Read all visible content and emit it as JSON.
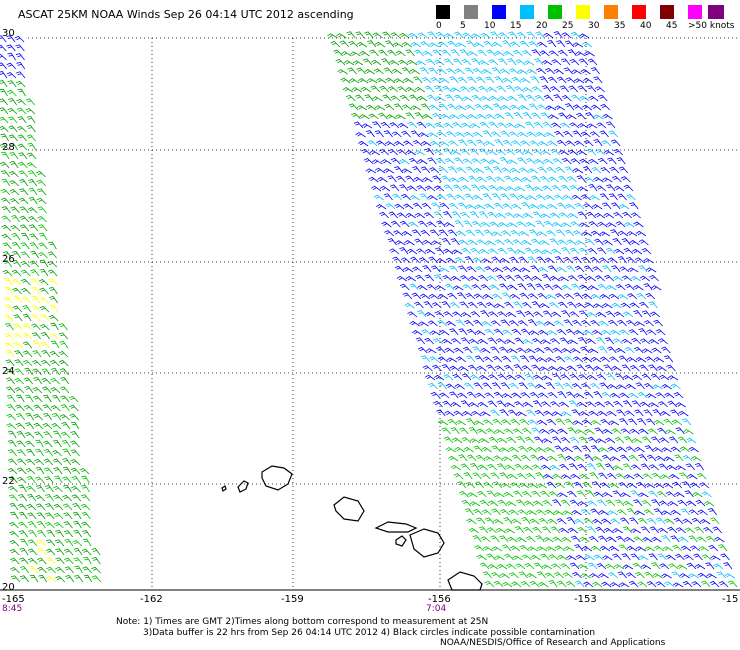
{
  "title": "ASCAT 25KM NOAA Winds Sep 26 04:14 UTC 2012 ascending",
  "legend": {
    "labels": [
      "0",
      "5",
      "10",
      "15",
      "20",
      "25",
      "30",
      "35",
      "40",
      "45",
      ">50 knots"
    ],
    "colors": [
      "#000000",
      "#808080",
      "#0000ff",
      "#00bfff",
      "#00c000",
      "#ffff00",
      "#ff8000",
      "#ff0000",
      "#800000",
      "#ff00ff",
      "#800080"
    ]
  },
  "map": {
    "lat_labels": [
      "30",
      "28",
      "26",
      "24",
      "22",
      "20"
    ],
    "lon_labels": [
      "-165",
      "-162",
      "-159",
      "-156",
      "-153",
      "-15"
    ],
    "time_labels": [
      "8:45",
      "7:04"
    ]
  },
  "notes": {
    "line1": "Note: 1) Times are GMT 2)Times along bottom correspond to measurement at 25N",
    "line2": "3)Data buffer is 22 hrs from Sep 26 04:14 UTC 2012 4) Black circles indicate possible contamination"
  },
  "credit": "NOAA/NESDIS/Office of Research and Applications"
}
